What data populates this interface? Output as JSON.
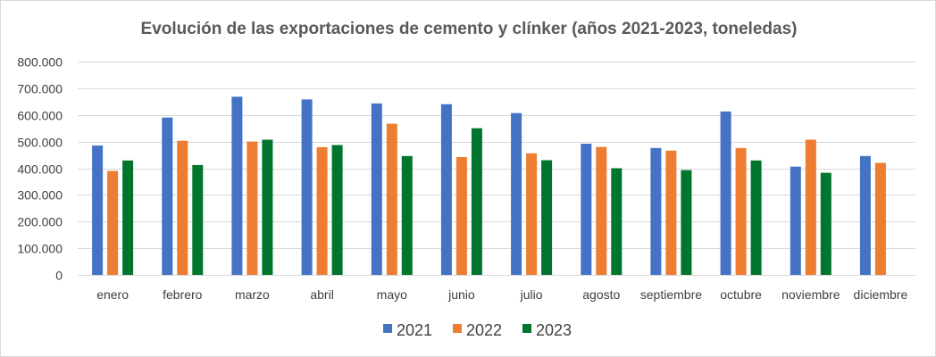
{
  "chart_data": {
    "type": "bar",
    "title": "Evolución de las exportaciones de cemento y clínker (años 2021-2023, toneledas)",
    "xlabel": "",
    "ylabel": "",
    "ylim": [
      0,
      800000
    ],
    "yticks": [
      0,
      100000,
      200000,
      300000,
      400000,
      500000,
      600000,
      700000,
      800000
    ],
    "ytick_labels": [
      "0",
      "100.000",
      "200.000",
      "300.000",
      "400.000",
      "500.000",
      "600.000",
      "700.000",
      "800.000"
    ],
    "grid": true,
    "legend_position": "bottom",
    "categories": [
      "enero",
      "febrero",
      "marzo",
      "abril",
      "mayo",
      "junio",
      "julio",
      "agosto",
      "septiembre",
      "octubre",
      "noviembre",
      "diciembre"
    ],
    "series": [
      {
        "name": "2021",
        "color": "#4472c4",
        "values": [
          485000,
          590000,
          668000,
          658000,
          643000,
          640000,
          607000,
          492000,
          476000,
          613000,
          406000,
          446000
        ]
      },
      {
        "name": "2022",
        "color": "#ed7d31",
        "values": [
          390000,
          503000,
          500000,
          479000,
          567000,
          442000,
          456000,
          480000,
          466000,
          476000,
          507000,
          420000
        ]
      },
      {
        "name": "2023",
        "color": "#00752d",
        "values": [
          429000,
          412000,
          507000,
          487000,
          446000,
          550000,
          430000,
          400000,
          393000,
          429000,
          383000,
          null
        ]
      }
    ]
  }
}
